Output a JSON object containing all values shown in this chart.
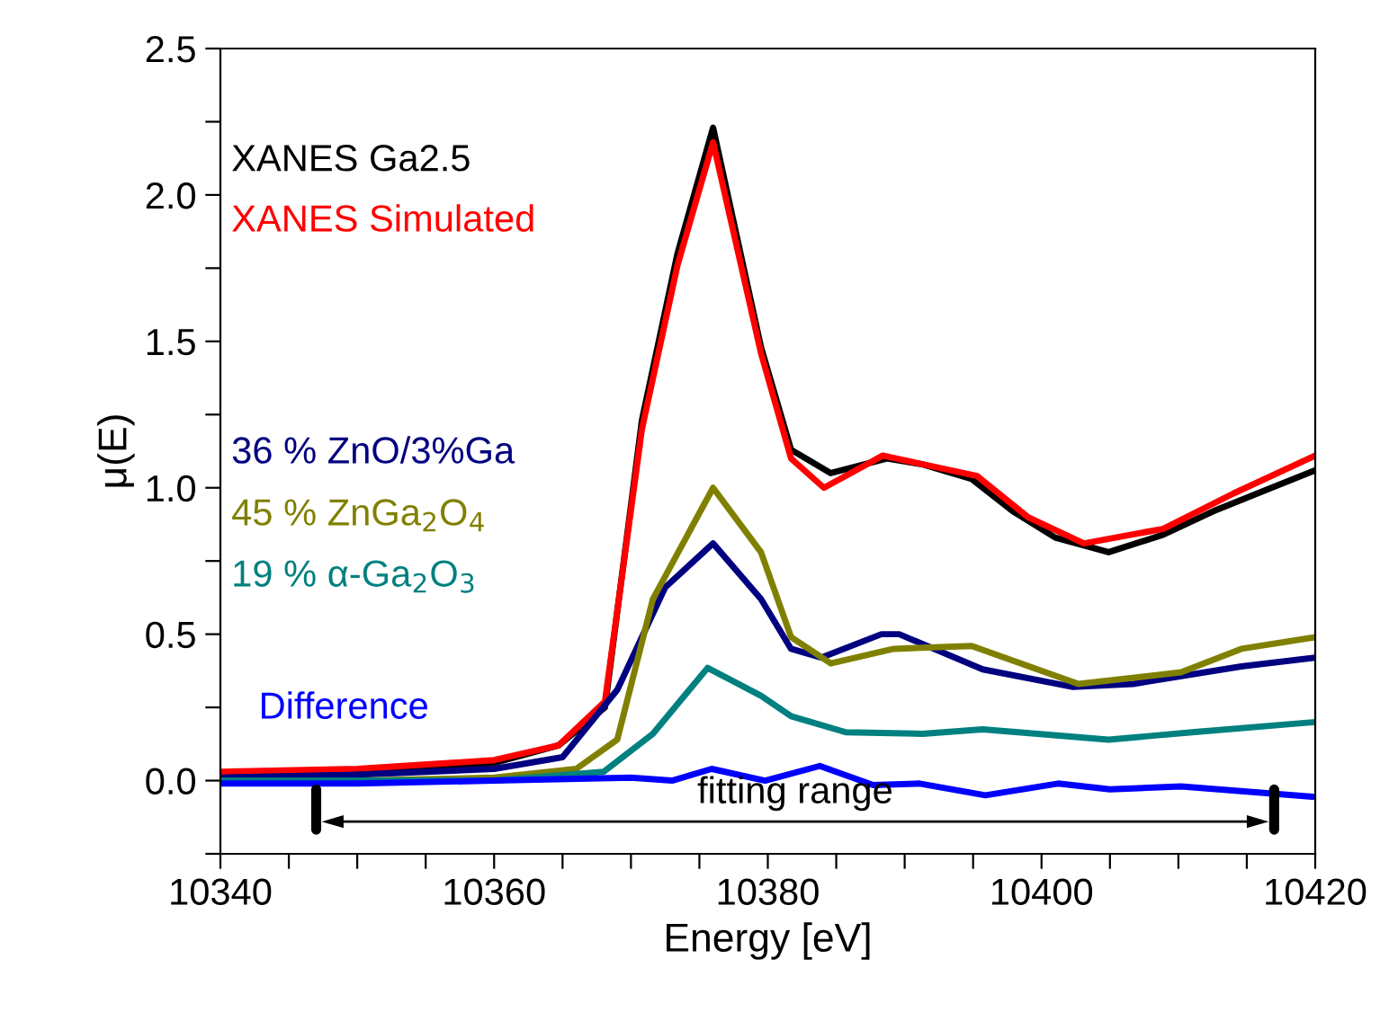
{
  "chart_data": {
    "type": "line",
    "xlabel": "Energy [eV]",
    "ylabel": "μ(E)",
    "xlim": [
      10340,
      10420
    ],
    "ylim": [
      -0.25,
      2.5
    ],
    "xticks": [
      10340,
      {
        "value": 10345,
        "label": null
      },
      {
        "value": 10350,
        "label": null
      },
      {
        "value": 10355,
        "label": null
      },
      10360,
      {
        "value": 10365,
        "label": null
      },
      {
        "value": 10370,
        "label": null
      },
      {
        "value": 10375,
        "label": null
      },
      10380,
      {
        "value": 10385,
        "label": null
      },
      {
        "value": 10390,
        "label": null
      },
      {
        "value": 10395,
        "label": null
      },
      10400,
      {
        "value": 10405,
        "label": null
      },
      {
        "value": 10410,
        "label": null
      },
      {
        "value": 10415,
        "label": null
      },
      10420
    ],
    "yticks": [
      {
        "value": -0.25,
        "label": null
      },
      {
        "value": 0,
        "label": "0.0"
      },
      {
        "value": 0.25,
        "label": null
      },
      {
        "value": 0.5,
        "label": "0.5"
      },
      {
        "value": 0.75,
        "label": null
      },
      {
        "value": 1,
        "label": "1.0"
      },
      {
        "value": 1.25,
        "label": null
      },
      {
        "value": 1.5,
        "label": "1.5"
      },
      {
        "value": 1.75,
        "label": null
      },
      {
        "value": 2,
        "label": "2.0"
      },
      {
        "value": 2.25,
        "label": null
      },
      {
        "value": 2.5,
        "label": "2.5"
      }
    ],
    "grid": false,
    "line_style": "solid",
    "marker": "none",
    "annotations": [
      "fitting range"
    ],
    "series": [
      {
        "name": "XANES Ga2.5",
        "color": "#000000",
        "x": [
          10340,
          10350,
          10360,
          10364.7,
          10368.1,
          10370.8,
          10373.4,
          10376.0,
          10379.5,
          10381.7,
          10384.6,
          10388.7,
          10391.3,
          10394.9,
          10397.9,
          10401.0,
          10404.9,
          10408.9,
          10412.8,
          10416.8,
          10420
        ],
        "values": [
          0.02,
          0.03,
          0.06,
          0.12,
          0.25,
          1.23,
          1.8,
          2.23,
          1.48,
          1.13,
          1.05,
          1.1,
          1.08,
          1.03,
          0.92,
          0.83,
          0.78,
          0.84,
          0.925,
          1.0,
          1.06
        ]
      },
      {
        "name": "XANES Simulated",
        "color": "#ff0000",
        "x": [
          10340,
          10350,
          10360,
          10364.7,
          10368.1,
          10370.8,
          10373.4,
          10376.0,
          10379.5,
          10381.7,
          10384.1,
          10388.4,
          10395.3,
          10399.0,
          10403.1,
          10408.9,
          10414.0,
          10420
        ],
        "values": [
          0.03,
          0.04,
          0.07,
          0.12,
          0.27,
          1.2,
          1.76,
          2.18,
          1.46,
          1.1,
          1.0,
          1.11,
          1.04,
          0.9,
          0.81,
          0.86,
          0.98,
          1.11
        ]
      },
      {
        "name": "36 % ZnO/3%Ga",
        "color": "#000080",
        "x": [
          10340,
          10350,
          10360,
          10365,
          10369,
          10372.5,
          10376,
          10379.5,
          10381.7,
          10383.9,
          10388.3,
          10389.6,
          10395.7,
          10402.3,
          10406.7,
          10414.6,
          10420
        ],
        "values": [
          0.01,
          0.02,
          0.04,
          0.08,
          0.31,
          0.66,
          0.81,
          0.62,
          0.45,
          0.42,
          0.5,
          0.5,
          0.38,
          0.32,
          0.33,
          0.39,
          0.42
        ]
      },
      {
        "name": "45 % ZnGa$_{2}$O$_{4}$",
        "color": "#808000",
        "x": [
          10340,
          10350,
          10360,
          10366,
          10369,
          10371.6,
          10376,
          10379.5,
          10381.7,
          10384.6,
          10389.2,
          10394.9,
          10397.9,
          10402.7,
          10410.2,
          10414.6,
          10420
        ],
        "values": [
          0.0,
          0.0,
          0.01,
          0.04,
          0.14,
          0.62,
          1.0,
          0.78,
          0.49,
          0.4,
          0.45,
          0.46,
          0.41,
          0.33,
          0.37,
          0.45,
          0.49
        ]
      },
      {
        "name": "19 % α-Ga$_{2}$O$_{3}$",
        "color": "#008080",
        "x": [
          10340,
          10350,
          10360,
          10368,
          10371.6,
          10375.6,
          10379.5,
          10381.7,
          10385.7,
          10391.3,
          10395.7,
          10404.9,
          10411,
          10420
        ],
        "values": [
          0.0,
          0.0,
          0.0,
          0.03,
          0.16,
          0.385,
          0.29,
          0.22,
          0.165,
          0.16,
          0.175,
          0.14,
          0.165,
          0.2
        ]
      },
      {
        "name": "Difference",
        "color": "#0000ff",
        "x": [
          10340,
          10350,
          10360,
          10370,
          10373,
          10375.9,
          10379.8,
          10383.8,
          10387.7,
          10391.1,
          10395.9,
          10401.2,
          10405,
          10410.2,
          10419.8
        ],
        "values": [
          -0.01,
          -0.01,
          0.0,
          0.01,
          0.0,
          0.04,
          0.0,
          0.05,
          -0.015,
          -0.01,
          -0.05,
          -0.01,
          -0.03,
          -0.02,
          -0.055
        ]
      }
    ]
  }
}
